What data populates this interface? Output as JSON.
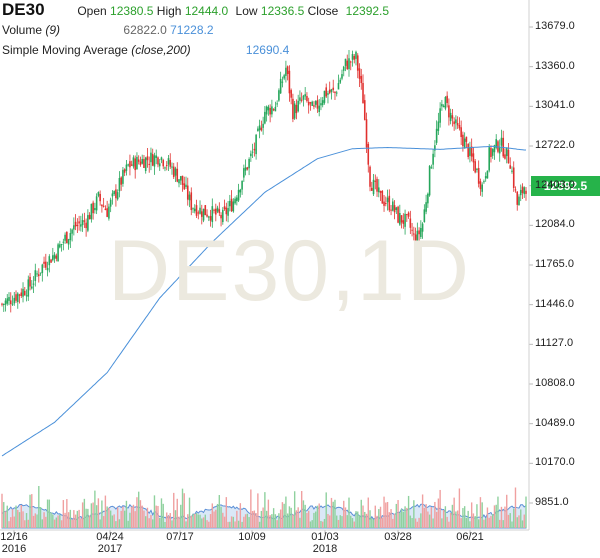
{
  "header": {
    "symbol": "DE30",
    "open_label": "Open",
    "open_value": "12380.5",
    "high_label": "High",
    "high_value": "12444.0",
    "low_label": "Low",
    "low_value": "12336.5",
    "close_label": "Close",
    "close_value": "12392.5",
    "volume_label": "Volume",
    "volume_param": "(9)",
    "volume_value1": "62822.0",
    "volume_value2": "71228.2",
    "sma_label": "Simple Moving Average",
    "sma_param": "(close,200)",
    "sma_value": "12690.4"
  },
  "watermark": "DE30,1D",
  "last_price_tag": "12392.5",
  "colors": {
    "up": "#26a65b",
    "down": "#e0302e",
    "sma": "#4a90d9",
    "volume_fill": "#bcd6f0"
  },
  "chart_data": {
    "type": "candlestick",
    "y_ticks": [
      "13679.0",
      "13360.0",
      "13041.0",
      "12722.0",
      "12403.0",
      "12084.0",
      "11765.0",
      "11446.0",
      "11127.0",
      "10808.0",
      "10489.0",
      "10170.0",
      "9851.0"
    ],
    "x_ticks": [
      {
        "line1": "12/16",
        "line2": "2016"
      },
      {
        "line1": "04/24",
        "line2": "2017"
      },
      {
        "line1": "07/17",
        "line2": ""
      },
      {
        "line1": "10/09",
        "line2": ""
      },
      {
        "line1": "01/03",
        "line2": "2018"
      },
      {
        "line1": "03/28",
        "line2": ""
      },
      {
        "line1": "06/21",
        "line2": ""
      }
    ],
    "ylim": [
      9851,
      13679
    ],
    "close_anchors": [
      [
        0,
        11450
      ],
      [
        8,
        11520
      ],
      [
        16,
        11600
      ],
      [
        24,
        11780
      ],
      [
        30,
        11850
      ],
      [
        36,
        11980
      ],
      [
        42,
        12080
      ],
      [
        48,
        12120
      ],
      [
        55,
        12300
      ],
      [
        60,
        12200
      ],
      [
        66,
        12380
      ],
      [
        72,
        12560
      ],
      [
        78,
        12600
      ],
      [
        84,
        12620
      ],
      [
        90,
        12640
      ],
      [
        96,
        12560
      ],
      [
        102,
        12450
      ],
      [
        108,
        12250
      ],
      [
        114,
        12200
      ],
      [
        120,
        12180
      ],
      [
        126,
        12150
      ],
      [
        132,
        12280
      ],
      [
        138,
        12500
      ],
      [
        144,
        12700
      ],
      [
        150,
        13000
      ],
      [
        156,
        13050
      ],
      [
        162,
        13350
      ],
      [
        166,
        13000
      ],
      [
        172,
        13100
      ],
      [
        178,
        13000
      ],
      [
        184,
        13150
      ],
      [
        190,
        13150
      ],
      [
        196,
        13380
      ],
      [
        202,
        13430
      ],
      [
        206,
        13100
      ],
      [
        210,
        12450
      ],
      [
        216,
        12300
      ],
      [
        222,
        12250
      ],
      [
        226,
        12150
      ],
      [
        232,
        12100
      ],
      [
        236,
        11950
      ],
      [
        240,
        12100
      ],
      [
        246,
        12700
      ],
      [
        252,
        13100
      ],
      [
        258,
        12900
      ],
      [
        264,
        12750
      ],
      [
        270,
        12550
      ],
      [
        274,
        12400
      ],
      [
        278,
        12650
      ],
      [
        284,
        12750
      ],
      [
        290,
        12600
      ],
      [
        294,
        12250
      ],
      [
        298,
        12400
      ]
    ],
    "sma_anchors": [
      [
        0,
        10230
      ],
      [
        30,
        10500
      ],
      [
        60,
        10900
      ],
      [
        90,
        11500
      ],
      [
        120,
        11950
      ],
      [
        150,
        12350
      ],
      [
        180,
        12620
      ],
      [
        200,
        12700
      ],
      [
        220,
        12710
      ],
      [
        250,
        12695
      ],
      [
        280,
        12720
      ],
      [
        298,
        12690
      ]
    ],
    "volume_base": 9851
  }
}
